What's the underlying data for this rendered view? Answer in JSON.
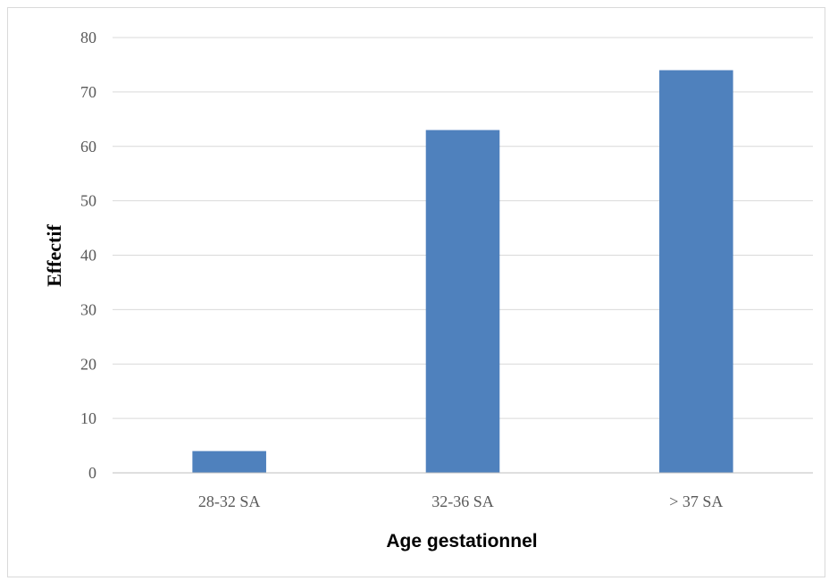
{
  "chart_data": {
    "type": "bar",
    "categories": [
      "28-32 SA",
      "32-36 SA",
      "> 37 SA"
    ],
    "values": [
      4,
      63,
      74
    ],
    "xlabel": "Age gestationnel",
    "ylabel": "Effectif",
    "ylim": [
      0,
      80
    ],
    "yticks": [
      0,
      10,
      20,
      30,
      40,
      50,
      60,
      70,
      80
    ],
    "grid": true,
    "legend": "none",
    "colors": {
      "bar": "#4f81bd",
      "grid": "#d9d9d9",
      "axis": "#bfbfbf",
      "tick_text": "#595959"
    }
  }
}
